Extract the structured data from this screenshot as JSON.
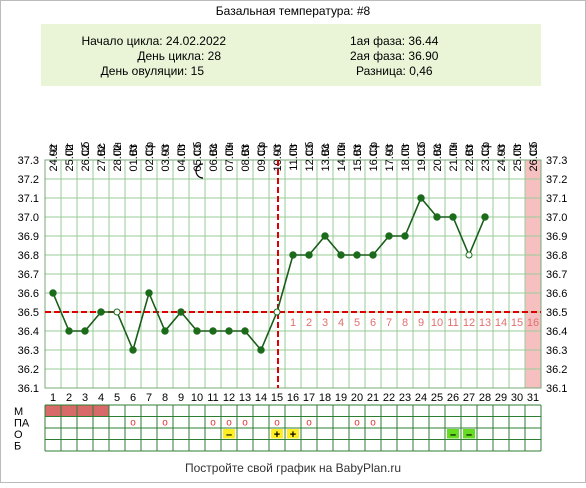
{
  "title": "Базальная температура: #8",
  "info": {
    "cycle_start": "Начало цикла: 24.02.2022",
    "cycle_day": "День цикла: 28",
    "ovulation_day": "День овуляции: 15",
    "phase1": "1ая фаза: 36.44",
    "phase2": "2ая фаза: 36.90",
    "difference": "Разница: 0,46"
  },
  "footer": "Постройте свой график на BabyPlan.ru",
  "colors": {
    "line": "#1a5c1a",
    "point": "#1a6b1a",
    "coverline": "#dd0000",
    "ovulation": "#dd0000",
    "highlight": "#f6c0c0",
    "info_bg": "#eaf5d8",
    "menses": "#d96a6a",
    "post_ov_numbers": "#e07070",
    "ov_yellow": "#ffee22",
    "ov_green": "#66dd22",
    "grid": "#99cc99"
  },
  "chart_data": {
    "type": "line",
    "title": "Базальная температура: #8",
    "x_dates": [
      "24.02",
      "25.02",
      "26.02",
      "27.02",
      "28.02",
      "01.03",
      "02.03",
      "03.03",
      "04.03",
      "05.03",
      "06.03",
      "07.03",
      "08.03",
      "09.03",
      "10.03",
      "11.03",
      "12.03",
      "13.03",
      "14.03",
      "15.03",
      "16.03",
      "17.03",
      "18.03",
      "19.03",
      "20.03",
      "21.03",
      "22.03",
      "23.03",
      "24.03",
      "25.03",
      "26.03"
    ],
    "x_weekdays": [
      "Чт",
      "Пт",
      "Сб",
      "Вс",
      "Пн",
      "Вт",
      "Ср",
      "Чт",
      "Пт",
      "Сб",
      "Вс",
      "Пн",
      "Вт",
      "Ср",
      "Чт",
      "Пт",
      "Сб",
      "Вс",
      "Пн",
      "Вт",
      "Ср",
      "Чт",
      "Пт",
      "Сб",
      "Вс",
      "Пн",
      "Вт",
      "Ср",
      "Чт",
      "Пт",
      "Сб"
    ],
    "cycle_days": [
      "1",
      "2",
      "3",
      "4",
      "5",
      "6",
      "7",
      "8",
      "9",
      "10",
      "11",
      "12",
      "13",
      "14",
      "15",
      "16",
      "17",
      "18",
      "19",
      "20",
      "21",
      "22",
      "23",
      "24",
      "25",
      "26",
      "27",
      "28",
      "29",
      "30",
      "31"
    ],
    "post_ovulation_days": [
      "1",
      "2",
      "3",
      "4",
      "5",
      "6",
      "7",
      "8",
      "9",
      "10",
      "11",
      "12",
      "13",
      "14",
      "15",
      "16"
    ],
    "y_ticks": [
      "36.1",
      "36.2",
      "36.3",
      "36.4",
      "36.5",
      "36.6",
      "36.7",
      "36.8",
      "36.9",
      "37.0",
      "37.1",
      "37.2",
      "37.3"
    ],
    "ylim": [
      36.1,
      37.3
    ],
    "series": [
      {
        "points": [
          {
            "day": 1,
            "value": 36.6
          },
          {
            "day": 2,
            "value": 36.4
          },
          {
            "day": 3,
            "value": 36.4
          },
          {
            "day": 4,
            "value": 36.5
          },
          {
            "day": 5,
            "value": 36.5,
            "open": true
          },
          {
            "day": 6,
            "value": 36.3
          },
          {
            "day": 7,
            "value": 36.6
          },
          {
            "day": 8,
            "value": 36.4
          },
          {
            "day": 9,
            "value": 36.5
          },
          {
            "day": 10,
            "value": 36.4
          },
          {
            "day": 11,
            "value": 36.4
          },
          {
            "day": 12,
            "value": 36.4
          },
          {
            "day": 13,
            "value": 36.4
          },
          {
            "day": 14,
            "value": 36.3
          },
          {
            "day": 15,
            "value": 36.5,
            "open": true
          },
          {
            "day": 16,
            "value": 36.8
          },
          {
            "day": 17,
            "value": 36.8
          },
          {
            "day": 18,
            "value": 36.9
          },
          {
            "day": 19,
            "value": 36.8
          },
          {
            "day": 20,
            "value": 36.8
          },
          {
            "day": 21,
            "value": 36.8
          },
          {
            "day": 22,
            "value": 36.9
          },
          {
            "day": 23,
            "value": 36.9
          },
          {
            "day": 24,
            "value": 37.1
          },
          {
            "day": 25,
            "value": 37.0
          },
          {
            "day": 26,
            "value": 37.0
          },
          {
            "day": 27,
            "value": 36.8,
            "open": true
          },
          {
            "day": 28,
            "value": 37.0
          }
        ]
      }
    ],
    "coverline": 36.5,
    "ovulation_day": 15,
    "highlight_day": 31,
    "moon_day": 10,
    "moon_icon": "crescent-moon-icon",
    "grid": true
  },
  "table": {
    "row_labels": [
      "М",
      "ПА",
      "О",
      "Б"
    ],
    "menses_days": [
      1,
      2,
      3,
      4
    ],
    "pa_marks": [
      6,
      8,
      11,
      12,
      13,
      15,
      17,
      20,
      21
    ],
    "pa_symbol": "o",
    "ov_tests": [
      {
        "day": 12,
        "symbol": "–",
        "kind": "yellow"
      },
      {
        "day": 15,
        "symbol": "+",
        "kind": "yellow"
      },
      {
        "day": 16,
        "symbol": "+",
        "kind": "yellow"
      },
      {
        "day": 26,
        "symbol": "–",
        "kind": "green"
      },
      {
        "day": 27,
        "symbol": "–",
        "kind": "green"
      }
    ]
  }
}
